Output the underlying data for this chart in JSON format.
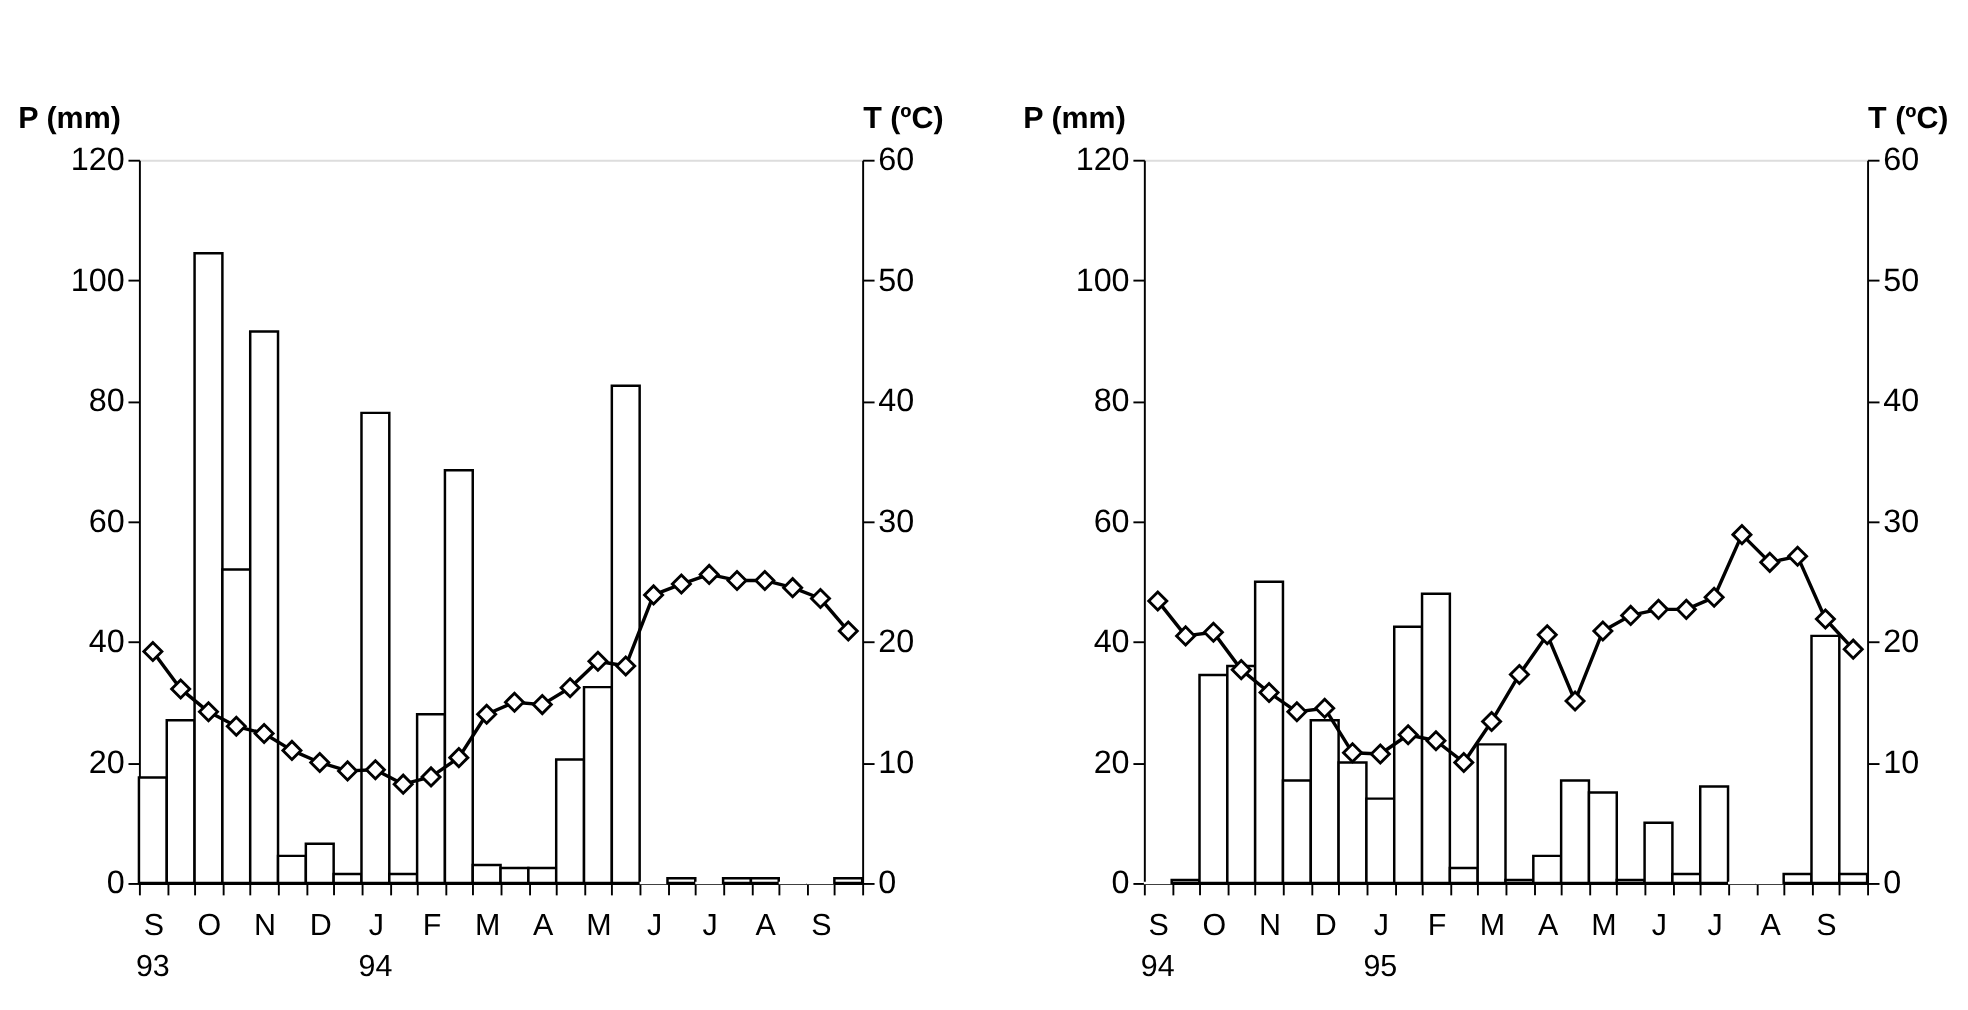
{
  "chart_data": [
    {
      "type": "bar",
      "ylabel": "P (mm)",
      "y2label": "T (ºC)",
      "categories": [
        "S",
        null,
        "O",
        null,
        "N",
        null,
        "D",
        null,
        "J",
        null,
        "F",
        null,
        "M",
        null,
        "A",
        null,
        "M",
        null,
        "J",
        null,
        "J",
        null,
        "A",
        null,
        "S",
        null
      ],
      "ylim": [
        0,
        120
      ],
      "yticks": [
        0,
        20,
        40,
        60,
        80,
        100,
        120
      ],
      "y2lim": [
        0,
        60
      ],
      "y2ticks": [
        0,
        10,
        20,
        30,
        40,
        50,
        60
      ],
      "grid": false,
      "annotations": [
        "93",
        "94"
      ],
      "series": [
        {
          "color": "#ffffff",
          "values": [
            17.5,
            27,
            104.5,
            52,
            91.5,
            4.5,
            6.5,
            1.5,
            78,
            1.5,
            28,
            68.5,
            3,
            2.5,
            2.5,
            20.5,
            32.5,
            82.5,
            0,
            0.8,
            0,
            0.8,
            0.8,
            0,
            0,
            0.8
          ]
        },
        {
          "type": "line",
          "axis": "y2",
          "color": "#000000",
          "marker": "diamond",
          "line_style": "solid",
          "values": [
            19.2,
            16.1,
            14.2,
            13.0,
            12.4,
            11.0,
            10.0,
            9.3,
            9.4,
            8.2,
            8.8,
            10.4,
            14.0,
            15.0,
            14.8,
            16.2,
            18.4,
            18.0,
            23.9,
            24.8,
            25.6,
            25.1,
            25.1,
            24.5,
            23.6,
            20.9
          ]
        }
      ]
    },
    {
      "type": "bar",
      "ylabel": "P (mm)",
      "y2label": "T (ºC)",
      "categories": [
        "S",
        null,
        "O",
        null,
        "N",
        null,
        "D",
        null,
        "J",
        null,
        "F",
        null,
        "M",
        null,
        "A",
        null,
        "M",
        null,
        "J",
        null,
        "J",
        null,
        "A",
        null,
        "S",
        null
      ],
      "ylim": [
        0,
        120
      ],
      "yticks": [
        0,
        20,
        40,
        60,
        80,
        100,
        120
      ],
      "y2lim": [
        0,
        60
      ],
      "y2ticks": [
        0,
        10,
        20,
        30,
        40,
        50,
        60
      ],
      "grid": false,
      "annotations": [
        "94",
        "95"
      ],
      "series": [
        {
          "color": "#ffffff",
          "values": [
            0,
            0.5,
            34.5,
            36,
            50,
            17,
            27,
            20,
            14,
            42.5,
            48,
            2.5,
            23,
            0.5,
            4.5,
            17,
            15,
            0.5,
            10,
            1.5,
            16,
            0,
            0,
            1.5,
            41,
            1.5
          ]
        },
        {
          "type": "line",
          "axis": "y2",
          "color": "#000000",
          "marker": "diamond",
          "line_style": "solid",
          "values": [
            23.4,
            20.5,
            20.8,
            17.7,
            15.8,
            14.2,
            14.5,
            10.8,
            10.7,
            12.3,
            11.8,
            10.0,
            13.4,
            17.3,
            20.6,
            15.1,
            20.9,
            22.2,
            22.7,
            22.7,
            23.7,
            28.9,
            26.6,
            27.1,
            21.9,
            19.4
          ]
        }
      ]
    }
  ]
}
